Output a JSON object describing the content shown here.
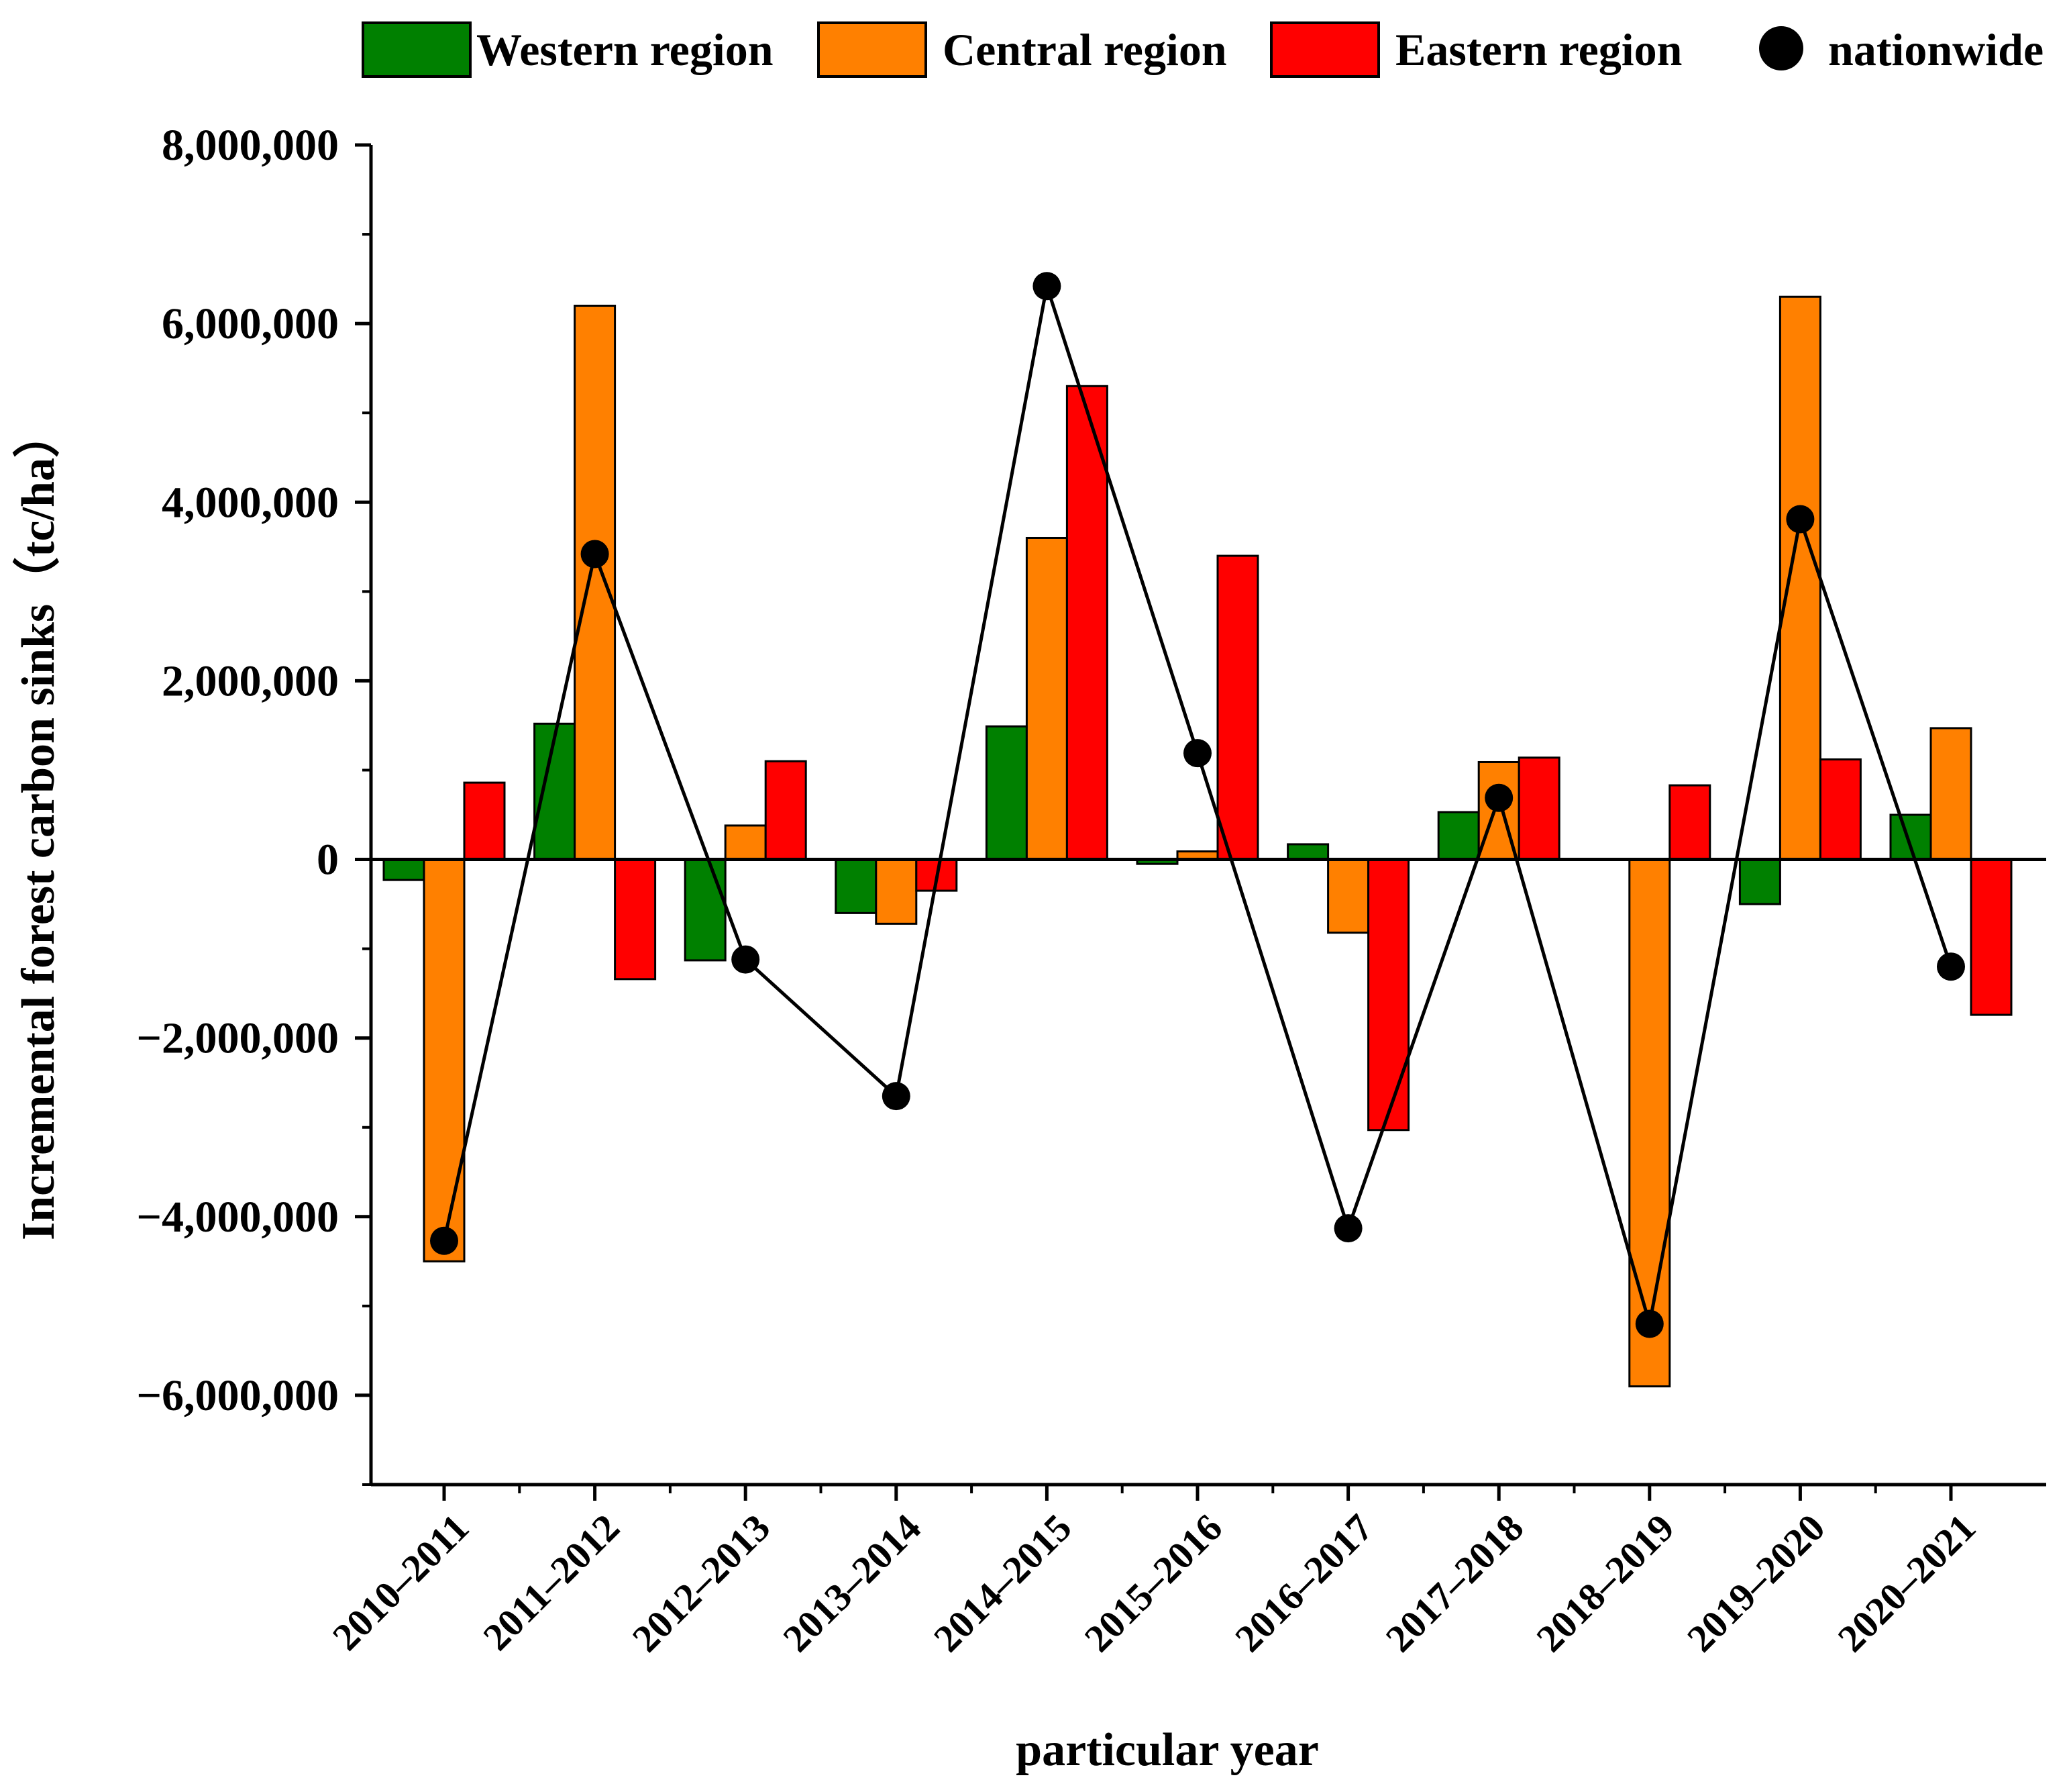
{
  "chart_data": {
    "type": "bar",
    "title": "",
    "xlabel": "particular year",
    "ylabel": "Incremental forest carbon sinks（tc/ha）",
    "ylim": [
      -7000000,
      8000000
    ],
    "y_ticks": [
      -6000000,
      -4000000,
      -2000000,
      0,
      2000000,
      4000000,
      6000000,
      8000000
    ],
    "y_tick_labels": [
      "−6,000,000",
      "−4,000,000",
      "−2,000,000",
      "0",
      "2,000,000",
      "4,000,000",
      "6,000,000",
      "8,000,000"
    ],
    "categories": [
      "2010–2011",
      "2011–2012",
      "2012–2013",
      "2013–2014",
      "2014–2015",
      "2015–2016",
      "2016–2017",
      "2017–2018",
      "2018–2019",
      "2019–2020",
      "2020–2021"
    ],
    "series": [
      {
        "name": "Western region",
        "kind": "bar",
        "color": "#008000",
        "values": [
          -230000,
          1520000,
          -1130000,
          -600000,
          1490000,
          -50000,
          170000,
          530000,
          0,
          -500000,
          500000
        ]
      },
      {
        "name": "Central region",
        "kind": "bar",
        "color": "#ff8000",
        "values": [
          -4500000,
          6200000,
          380000,
          -720000,
          3600000,
          90000,
          -820000,
          1090000,
          -5900000,
          6300000,
          1470000
        ]
      },
      {
        "name": "Eastern region",
        "kind": "bar",
        "color": "#ff0000",
        "values": [
          860000,
          -1340000,
          1100000,
          -350000,
          5300000,
          3400000,
          -3030000,
          1140000,
          830000,
          1120000,
          -1740000
        ]
      },
      {
        "name": "nationwide",
        "kind": "line",
        "color": "#000000",
        "values": [
          -4270000,
          3420000,
          -1120000,
          -2650000,
          6420000,
          1190000,
          -4130000,
          690000,
          -5200000,
          3810000,
          -1200000
        ]
      }
    ],
    "legend_position": "top",
    "grid": false
  }
}
